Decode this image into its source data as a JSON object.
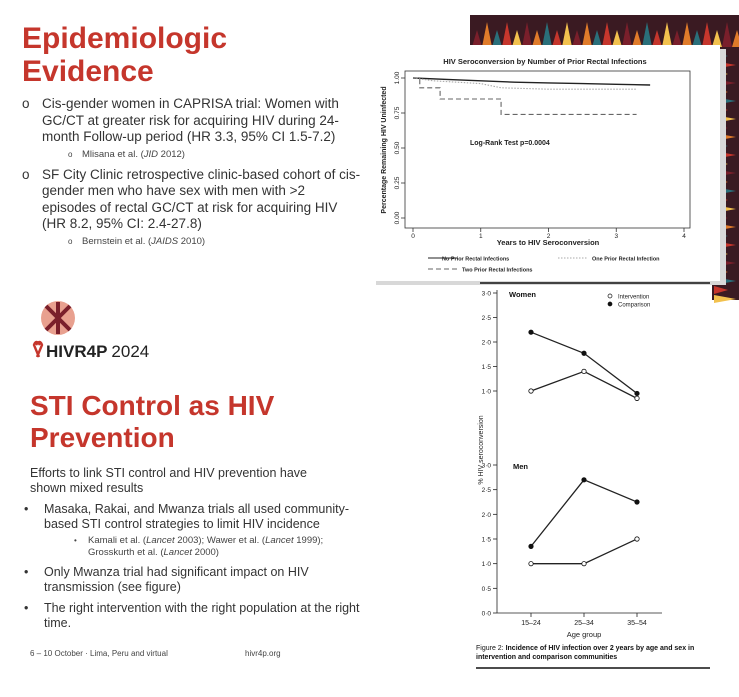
{
  "slide1": {
    "title": "Epidemiologic Evidence",
    "bullets": [
      {
        "text": "Cis-gender women in CAPRISA trial: Women with GC/CT at greater risk for acquiring HIV during 24-month Follow-up period (HR 3.3, 95% CI 1.5-7.2)",
        "sub": [
          {
            "text": "Mlisana et al. ("
          },
          {
            "text": "JID",
            "italic": true
          },
          {
            "text": " 2012)"
          }
        ]
      },
      {
        "text": "SF City Clinic retrospective clinic-based cohort of cis-gender men who have sex with men with >2 episodes of rectal GC/CT at risk for acquiring HIV (HR 8.2, 95% CI: 2.4-27.8)",
        "sub": [
          {
            "text": "Bernstein et al. ("
          },
          {
            "text": "JAIDS",
            "italic": true
          },
          {
            "text": " 2010)"
          }
        ]
      }
    ]
  },
  "figure1": {
    "type": "line",
    "title": "HIV Seroconversion by Number of Prior Rectal Infections",
    "xlabel": "Years to HIV Seroconversion",
    "ylabel": "Percentage Remaining HIV Uninfected",
    "annotation": "Log-Rank Test p=0.0004",
    "xlim": [
      0,
      4
    ],
    "ylim": [
      0,
      1
    ],
    "xticks": [
      0,
      1,
      2,
      3,
      4
    ],
    "yticks": [
      {
        "value": 0,
        "label": "0.00"
      },
      0.25,
      {
        "value": 0.5,
        "label": "0.50"
      },
      0.75,
      {
        "value": 1,
        "label": "1.00"
      }
    ],
    "series": [
      {
        "name": "No Prior Rectal Infections",
        "color": "#222222",
        "x": [
          0,
          0.5,
          1,
          1.5,
          2,
          2.5,
          3,
          3.5
        ],
        "values": [
          1,
          0.99,
          0.98,
          0.97,
          0.965,
          0.96,
          0.955,
          0.95
        ]
      },
      {
        "name": "One Prior Rectal Infection",
        "color": "#aaaaaa",
        "x": [
          0,
          0.3,
          1,
          1.3,
          2,
          3.3
        ],
        "values": [
          1,
          0.98,
          0.96,
          0.93,
          0.92,
          0.92
        ]
      },
      {
        "name": "Two Prior Rectal Infections",
        "color": "#666666",
        "x": [
          0,
          0.1,
          0.1,
          0.4,
          0.4,
          1.3,
          1.3,
          3.3
        ],
        "values": [
          1,
          1,
          0.93,
          0.93,
          0.85,
          0.85,
          0.74,
          0.74
        ]
      }
    ]
  },
  "logo": {
    "name": "HIVR4P",
    "year": "2024"
  },
  "slide2": {
    "title": "STI Control as HIV Prevention",
    "intro": "Efforts to link STI control and HIV prevention have shown mixed results",
    "bullets": [
      {
        "text": "Masaka, Rakai, and Mwanza trials all used community-based STI control strategies to limit HIV incidence",
        "sub": [
          {
            "text": "Kamali et al. ("
          },
          {
            "text": "Lancet",
            "italic": true
          },
          {
            "text": " 2003); Wawer et al. ("
          },
          {
            "text": "Lancet",
            "italic": true
          },
          {
            "text": " 1999); Grosskurth et al. ("
          },
          {
            "text": "Lancet",
            "italic": true
          },
          {
            "text": " 2000)"
          }
        ]
      },
      {
        "text": "Only Mwanza trial had significant impact on HIV transmission (see figure)"
      },
      {
        "text": "The right intervention with the right population at the right time."
      }
    ]
  },
  "figure2": {
    "type": "line",
    "ylabel": "% HIV seroconversion",
    "xlabel": "Age group",
    "categories": [
      "15–24",
      "25–34",
      "35–54"
    ],
    "caption_label": "Figure 2: ",
    "caption": "Incidence of HIV infection over 2 years by age and sex in intervention and comparison communities",
    "legend": [
      {
        "name": "Intervention",
        "filled": false
      },
      {
        "name": "Comparison",
        "filled": true
      }
    ],
    "panels": [
      {
        "name": "Women",
        "ylim": [
          0,
          3
        ],
        "yticks": [
          {
            "value": 1,
            "label": "1·0"
          },
          {
            "value": 1.5,
            "label": "1·5"
          },
          {
            "value": 2,
            "label": "2·0"
          },
          {
            "value": 2.5,
            "label": "2·5"
          },
          {
            "value": 3,
            "label": "3·0"
          }
        ],
        "series": [
          {
            "values": [
              1.0,
              1.4,
              0.85
            ]
          },
          {
            "values": [
              2.2,
              1.77,
              0.95
            ]
          }
        ]
      },
      {
        "name": "Men",
        "ylim": [
          0,
          3
        ],
        "yticks": [
          {
            "value": 0,
            "label": "0·0"
          },
          {
            "value": 0.5,
            "label": "0·5"
          },
          {
            "value": 1,
            "label": "1·0"
          },
          {
            "value": 1.5,
            "label": "1·5"
          },
          {
            "value": 2,
            "label": "2·0"
          },
          {
            "value": 2.5,
            "label": "2·5"
          },
          {
            "value": 3,
            "label": "3·0"
          }
        ],
        "series": [
          {
            "values": [
              1.0,
              1.0,
              1.5
            ]
          },
          {
            "values": [
              1.35,
              2.7,
              2.25
            ]
          }
        ]
      }
    ]
  },
  "footer": {
    "left": "6 – 10 October · Lima, Peru and virtual",
    "right": "hivr4p.org"
  }
}
